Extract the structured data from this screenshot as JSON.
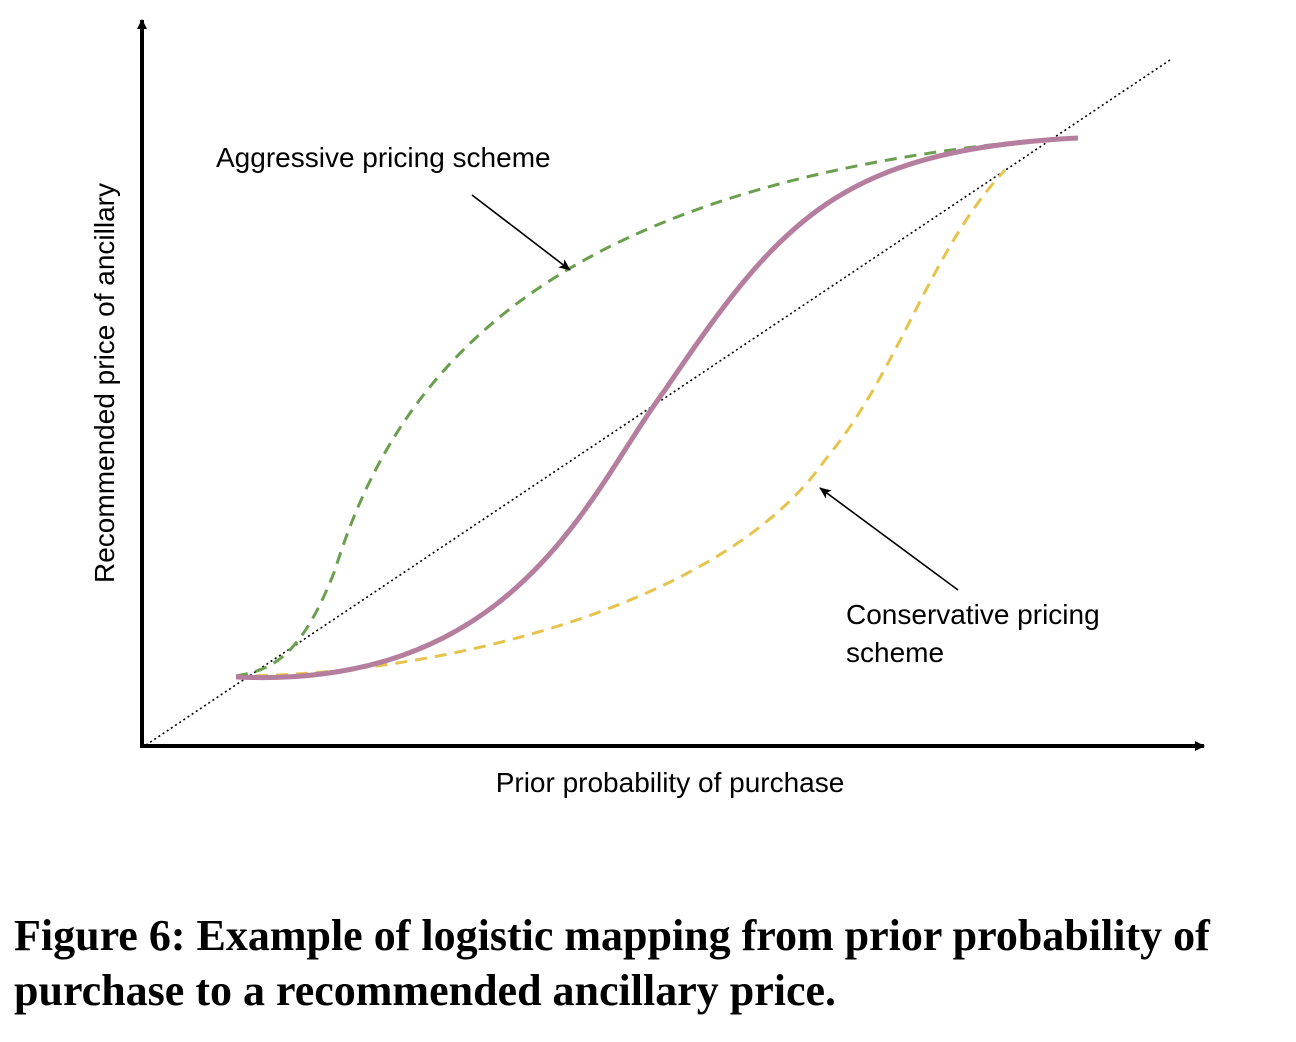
{
  "diagram": {
    "x_axis_label": "Prior probability of purchase",
    "y_axis_label": "Recommended price of ancillary",
    "aggressive_label": "Aggressive pricing scheme",
    "conservative_label_line1": "Conservative pricing",
    "conservative_label_line2": "scheme",
    "colors": {
      "axis": "#000000",
      "reference_line": "#000000",
      "aggressive_curve": "#6a9f4e",
      "conservative_curve": "#e6c34c",
      "logistic_curve": "#b57d9e",
      "annotation_arrow": "#000000"
    },
    "curve_styles": {
      "aggressive": "dashed",
      "conservative": "dashed",
      "logistic": "solid",
      "reference": "dotted"
    }
  },
  "caption": {
    "text": "Figure 6: Example of logistic mapping from prior probability of purchase to a recommended ancillary price."
  }
}
